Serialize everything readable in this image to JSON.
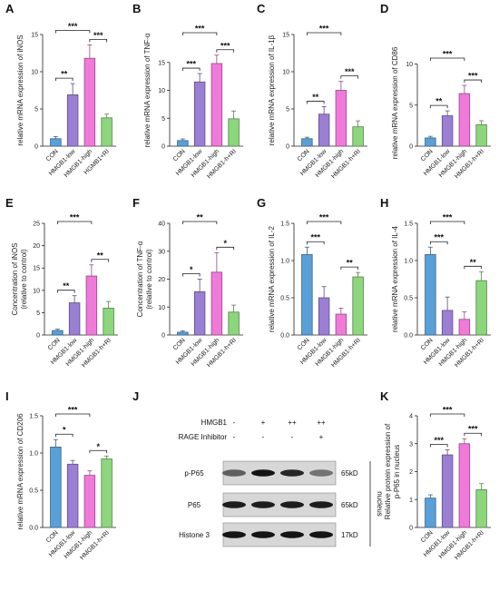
{
  "colors": {
    "CON": "#5aa0d8",
    "HMGB1-low": "#9b7fd4",
    "HMGB1-high": "#f07ad9",
    "HMGB1-h+RI": "#8cd67c"
  },
  "chart_data": [
    {
      "panel": "A",
      "type": "bar",
      "categories": [
        "CON",
        "HMGB1-low",
        "HMGB1-high",
        "HGMB1+RI"
      ],
      "values": [
        1.0,
        6.9,
        11.8,
        3.8
      ],
      "errors": [
        0.3,
        1.5,
        1.8,
        0.5
      ],
      "ylabel": "relative mRNA expression of iNOS",
      "ylim": [
        0,
        15
      ],
      "yticks": [
        "0",
        "5",
        "10",
        "15"
      ],
      "ytick_values": [
        0,
        5,
        10,
        15
      ],
      "brackets": [
        {
          "from": 0,
          "to": 1,
          "label": "**"
        },
        {
          "from": 0,
          "to": 2,
          "label": "***"
        },
        {
          "from": 2,
          "to": 3,
          "label": "***"
        }
      ]
    },
    {
      "panel": "B",
      "type": "bar",
      "categories": [
        "CON",
        "HMGB1-low",
        "HMGB1-high",
        "HMGB1-h+RI"
      ],
      "values": [
        1.0,
        11.5,
        14.8,
        4.9
      ],
      "errors": [
        0.3,
        1.5,
        1.5,
        1.4
      ],
      "ylabel": "relative mRNA expression of TNF-α",
      "ylim": [
        0,
        20
      ],
      "yticks": [
        "0",
        "5",
        "10",
        "15"
      ],
      "ytick_values": [
        0,
        5,
        10,
        15
      ],
      "brackets": [
        {
          "from": 0,
          "to": 1,
          "label": "***"
        },
        {
          "from": 0,
          "to": 2,
          "label": "***"
        },
        {
          "from": 2,
          "to": 3,
          "label": "***"
        }
      ]
    },
    {
      "panel": "C",
      "type": "bar",
      "categories": [
        "CON",
        "HMGB1-low",
        "HMGB1-high",
        "HMGB1-h+RI"
      ],
      "values": [
        1.0,
        4.3,
        7.5,
        2.6
      ],
      "errors": [
        0.2,
        1.0,
        1.2,
        0.8
      ],
      "ylabel": "relative mRNA expression of IL-1β",
      "ylim": [
        0,
        15
      ],
      "yticks": [
        "0",
        "5",
        "10",
        "15"
      ],
      "ytick_values": [
        0,
        5,
        10,
        15
      ],
      "brackets": [
        {
          "from": 0,
          "to": 1,
          "label": "**"
        },
        {
          "from": 0,
          "to": 2,
          "label": "***"
        },
        {
          "from": 2,
          "to": 3,
          "label": "***"
        }
      ]
    },
    {
      "panel": "D",
      "type": "bar",
      "categories": [
        "CON",
        "HMGB1-low",
        "HMGB1-high",
        "HMGB1-h+RI"
      ],
      "values": [
        1.0,
        3.7,
        6.4,
        2.6
      ],
      "errors": [
        0.2,
        0.6,
        1.0,
        0.5
      ],
      "ylabel": "relative mRNA expression of CD86",
      "ylim": [
        0,
        10.5
      ],
      "yticks": [
        "0",
        "5",
        "10"
      ],
      "ytick_values": [
        0,
        5,
        10
      ],
      "brackets": [
        {
          "from": 0,
          "to": 1,
          "label": "**"
        },
        {
          "from": 0,
          "to": 2,
          "label": "***"
        },
        {
          "from": 2,
          "to": 3,
          "label": "***"
        }
      ]
    },
    {
      "panel": "E",
      "type": "bar",
      "categories": [
        "CON",
        "HMGB1-low",
        "HMGB1-high",
        "HMGB1-h+RI"
      ],
      "values": [
        1.0,
        7.2,
        13.2,
        6.0
      ],
      "errors": [
        0.3,
        1.6,
        2.5,
        1.5
      ],
      "ylabel": "Concentration of iNOS",
      "ylabel2": "(relative to control)",
      "ylim": [
        0,
        25
      ],
      "yticks": [
        "0",
        "5",
        "10",
        "15",
        "20",
        "25"
      ],
      "ytick_values": [
        0,
        5,
        10,
        15,
        20,
        25
      ],
      "brackets": [
        {
          "from": 0,
          "to": 1,
          "label": "**"
        },
        {
          "from": 0,
          "to": 2,
          "label": "***"
        },
        {
          "from": 2,
          "to": 3,
          "label": "**"
        }
      ]
    },
    {
      "panel": "F",
      "type": "bar",
      "categories": [
        "CON",
        "HMGB1-low",
        "HMGB1-high",
        "HMGB1-h+RI"
      ],
      "values": [
        1.0,
        15.5,
        22.5,
        8.2
      ],
      "errors": [
        0.5,
        4.5,
        7.0,
        2.5
      ],
      "ylabel": "Concentration of TNF-α",
      "ylabel2": "(relative to control)",
      "ylim": [
        0,
        40
      ],
      "yticks": [
        "0",
        "10",
        "20",
        "30",
        "40"
      ],
      "ytick_values": [
        0,
        10,
        20,
        30,
        40
      ],
      "brackets": [
        {
          "from": 0,
          "to": 1,
          "label": "*"
        },
        {
          "from": 0,
          "to": 2,
          "label": "**"
        },
        {
          "from": 2,
          "to": 3,
          "label": "*"
        }
      ]
    },
    {
      "panel": "G",
      "type": "bar",
      "categories": [
        "CON",
        "HMGB1-low",
        "HMGB1-high",
        "HMGB1-h+RI"
      ],
      "values": [
        1.08,
        0.5,
        0.28,
        0.78
      ],
      "errors": [
        0.1,
        0.15,
        0.08,
        0.06
      ],
      "ylabel": "relative mRNA expression of IL-2",
      "ylim": [
        0,
        1.5
      ],
      "yticks": [
        "0.0",
        "0.5",
        "1.0",
        "1.5"
      ],
      "ytick_values": [
        0,
        0.5,
        1.0,
        1.5
      ],
      "brackets": [
        {
          "from": 0,
          "to": 1,
          "label": "***"
        },
        {
          "from": 0,
          "to": 2,
          "label": "***"
        },
        {
          "from": 2,
          "to": 3,
          "label": "**"
        }
      ]
    },
    {
      "panel": "H",
      "type": "bar",
      "categories": [
        "CON",
        "HMGB1-low",
        "HMGB1-high",
        "HMGB1-h+RI"
      ],
      "values": [
        1.08,
        0.33,
        0.21,
        0.73
      ],
      "errors": [
        0.1,
        0.18,
        0.1,
        0.12
      ],
      "ylabel": "relative mRNA expression of IL-4",
      "ylim": [
        0,
        1.5
      ],
      "yticks": [
        "0.0",
        "0.5",
        "1.0",
        "1.5"
      ],
      "ytick_values": [
        0,
        0.5,
        1.0,
        1.5
      ],
      "brackets": [
        {
          "from": 0,
          "to": 1,
          "label": "***"
        },
        {
          "from": 0,
          "to": 2,
          "label": "***"
        },
        {
          "from": 2,
          "to": 3,
          "label": "**"
        }
      ]
    },
    {
      "panel": "I",
      "type": "bar",
      "categories": [
        "CON",
        "HMGB1-low",
        "HMGB1-high",
        "HMGB1-h+RI"
      ],
      "values": [
        1.08,
        0.85,
        0.7,
        0.92
      ],
      "errors": [
        0.1,
        0.05,
        0.06,
        0.04
      ],
      "ylabel": "relative mRNA expression of CD206",
      "ylim": [
        0,
        1.5
      ],
      "yticks": [
        "0.0",
        "0.5",
        "1.0",
        "1.5"
      ],
      "ytick_values": [
        0,
        0.5,
        1.0,
        1.5
      ],
      "brackets": [
        {
          "from": 0,
          "to": 1,
          "label": "*"
        },
        {
          "from": 0,
          "to": 2,
          "label": "***"
        },
        {
          "from": 2,
          "to": 3,
          "label": "*"
        }
      ]
    },
    {
      "panel": "K",
      "type": "bar",
      "categories": [
        "CON",
        "HMGB1-low",
        "HMGB1-high",
        "HMGB1-h+RI"
      ],
      "values": [
        1.05,
        2.6,
        3.0,
        1.35
      ],
      "errors": [
        0.12,
        0.18,
        0.18,
        0.22
      ],
      "ylabel": "Relative protein expression of",
      "ylabel2": "p-P65 in nucleus",
      "ylim": [
        0,
        4
      ],
      "yticks": [
        "0",
        "1",
        "2",
        "3",
        "4"
      ],
      "ytick_values": [
        0,
        1,
        2,
        3,
        4
      ],
      "brackets": [
        {
          "from": 0,
          "to": 1,
          "label": "***"
        },
        {
          "from": 0,
          "to": 2,
          "label": "***"
        },
        {
          "from": 2,
          "to": 3,
          "label": "***"
        }
      ]
    }
  ],
  "western_blot": {
    "panel": "J",
    "treatments": [
      {
        "label": "HMGB1",
        "marks": [
          "-",
          "+",
          "++",
          "++"
        ]
      },
      {
        "label": "RAGE Inhibitor",
        "marks": [
          "-",
          "-",
          "-",
          "+"
        ]
      }
    ],
    "rows": [
      {
        "protein": "p-P65",
        "size": "65kD",
        "intensities": [
          0.55,
          0.95,
          0.85,
          0.45
        ]
      },
      {
        "protein": "P65",
        "size": "65kD",
        "intensities": [
          0.9,
          0.9,
          0.9,
          0.9
        ]
      },
      {
        "protein": "Histone 3",
        "size": "17kD",
        "intensities": [
          0.95,
          0.95,
          0.95,
          0.95
        ]
      }
    ],
    "side_label": "nucleus"
  }
}
